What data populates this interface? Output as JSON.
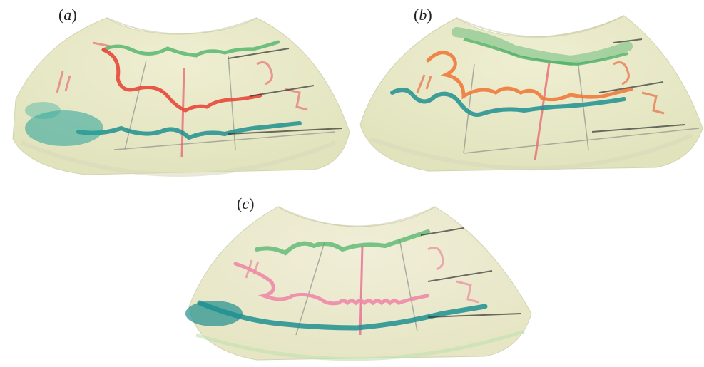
{
  "panels": [
    {
      "label_open": "(",
      "label_letter": "a",
      "label_close": ")"
    },
    {
      "label_open": "(",
      "label_letter": "b",
      "label_close": ")"
    },
    {
      "label_open": "(",
      "label_letter": "c",
      "label_close": ")"
    }
  ],
  "colors": {
    "background": "#ffffff",
    "tray": "#e8e7c3",
    "tray_edge": "#d6d8b8",
    "red_trace": "#e8483a",
    "orange_trace": "#f07a3a",
    "pink_trace": "#f08aa8",
    "green_dye": "#4fb46a",
    "teal_dye": "#1f8f8f",
    "grid_pencil": "#9a9a94",
    "marker_red": "#e85a6a"
  }
}
